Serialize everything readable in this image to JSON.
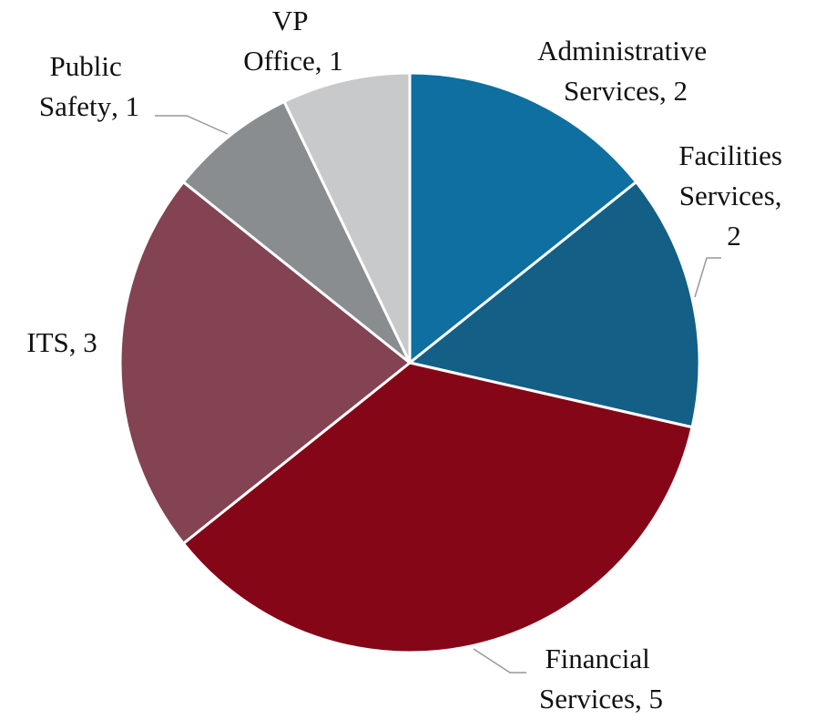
{
  "chart_data": {
    "type": "pie",
    "categories": [
      "Administrative Services",
      "Facilities Services",
      "Financial Services",
      "ITS",
      "Public Safety",
      "VP Office"
    ],
    "values": [
      2,
      2,
      5,
      3,
      1,
      1
    ],
    "colors": [
      "#0e6fa0",
      "#135f86",
      "#850617",
      "#834352",
      "#898d90",
      "#c8c9cb"
    ],
    "label_separator": ", "
  }
}
